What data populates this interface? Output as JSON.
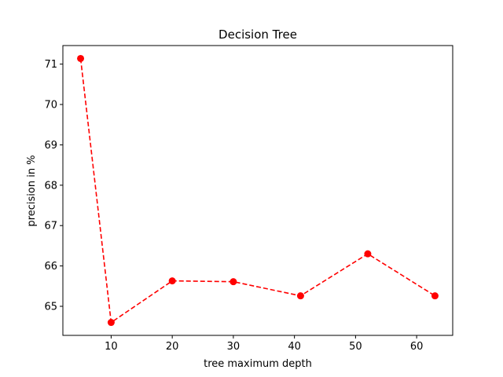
{
  "chart_data": {
    "type": "line",
    "title": "Decision Tree",
    "xlabel": "tree maximum depth",
    "ylabel": "precision in %",
    "grid": false,
    "xlim": [
      2.1,
      65.9
    ],
    "ylim": [
      64.28,
      71.46
    ],
    "xticks": [
      10,
      20,
      30,
      40,
      50,
      60
    ],
    "yticks": [
      65,
      66,
      67,
      68,
      69,
      70,
      71
    ],
    "series": [
      {
        "color": "#ff0000",
        "line_style": "dashed",
        "marker": "circle",
        "x": [
          5,
          10,
          20,
          30,
          41,
          52,
          63
        ],
        "y": [
          71.14,
          64.6,
          65.63,
          65.61,
          65.26,
          66.3,
          65.26
        ]
      }
    ]
  }
}
